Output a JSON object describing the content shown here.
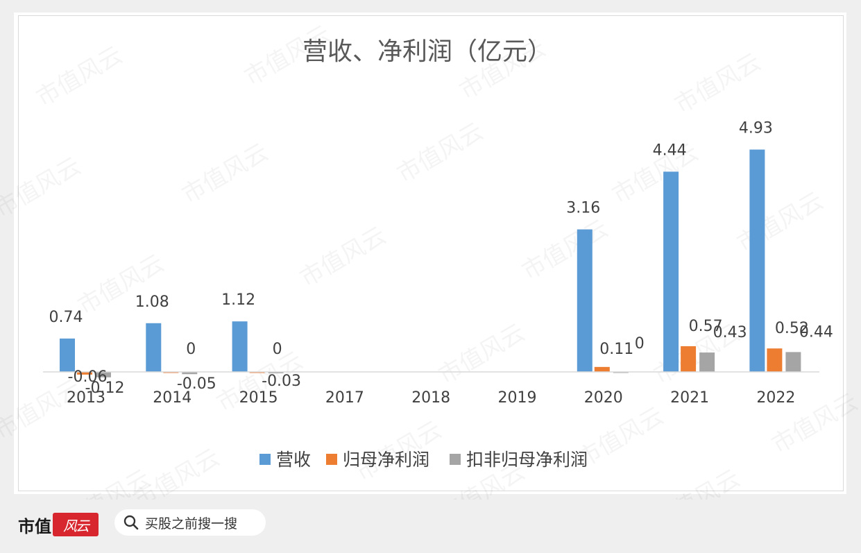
{
  "chart_data": {
    "type": "bar",
    "title": "营收、净利润（亿元）",
    "categories": [
      "2013",
      "2014",
      "2015",
      "2017",
      "2018",
      "2019",
      "2020",
      "2021",
      "2022"
    ],
    "series": [
      {
        "name": "营收",
        "color": "#5b9bd5",
        "values": [
          0.74,
          1.08,
          1.12,
          null,
          null,
          null,
          3.16,
          4.44,
          4.93
        ],
        "labels": [
          "0.74",
          "1.08",
          "1.12",
          "",
          "",
          "",
          "3.16",
          "4.44",
          "4.93"
        ]
      },
      {
        "name": "归母净利润",
        "color": "#ed7d31",
        "values": [
          -0.06,
          0,
          0,
          null,
          null,
          null,
          0.11,
          0.57,
          0.52
        ],
        "labels": [
          "-0.06",
          "0",
          "0",
          "",
          "",
          "",
          "0.11",
          "0.57",
          "0.52"
        ]
      },
      {
        "name": "扣非归母净利润",
        "color": "#a5a5a5",
        "values": [
          -0.12,
          -0.05,
          -0.03,
          null,
          null,
          null,
          0,
          0.43,
          0.44
        ],
        "labels": [
          "-0.12",
          "-0.05",
          "-0.03",
          "",
          "",
          "",
          "0",
          "0.43",
          "0.44"
        ]
      }
    ],
    "ylim": [
      -0.5,
      5.5
    ],
    "grid": false,
    "legend": "bottom"
  },
  "footer": {
    "brand": "市值",
    "brand_seal": "风云",
    "search_icon": "search-icon",
    "search_text": "买股之前搜一搜"
  },
  "watermark": "市值风云"
}
